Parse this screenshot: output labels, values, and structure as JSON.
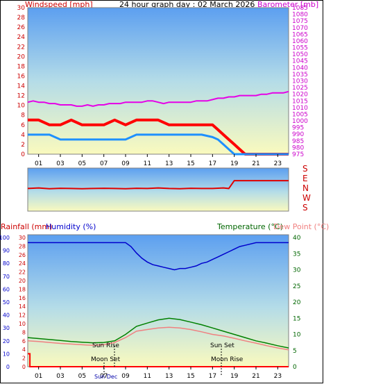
{
  "header": {
    "windspeed_label": "Windspeed [mph]",
    "title": "24 hour graph day : 02 March 2026",
    "barometer_label": "Barometer [mb]"
  },
  "lower_header": {
    "rainfall_label": "Rainfall (mm)",
    "humidity_label": "Humidity (%)",
    "temperature_label": "Temperature (°C)",
    "dewpoint_label": "Dew Point (°C)"
  },
  "annotations": {
    "sun_rise": "Sun Rise",
    "sun_set": "Sun Set",
    "moon_set": "Moon Set",
    "moon_rise": "Moon Rise",
    "sun_dec": "Sun Dec"
  },
  "hour_ticks": [
    "01",
    "03",
    "05",
    "07",
    "09",
    "11",
    "13",
    "15",
    "17",
    "19",
    "21",
    "23"
  ],
  "colors": {
    "wind_max": "#ff0000",
    "wind_avg": "#1e90ff",
    "barometer": "#e600e6",
    "direction": "#e00000",
    "humidity": "#0000cc",
    "temperature": "#008000",
    "dewpoint": "#f08080",
    "rain": "#ff0000",
    "left_axis": "#cc0000",
    "right_axis_baro": "#cc00cc",
    "right_axis_temp": "#006600"
  },
  "chart_data": [
    {
      "type": "line",
      "name": "wind-barometer",
      "x_unit": "hour",
      "xlim": [
        0,
        24
      ],
      "y_left": {
        "label": "Windspeed [mph]",
        "range": [
          0,
          30
        ],
        "ticks": [
          0,
          2,
          4,
          6,
          8,
          10,
          12,
          14,
          16,
          18,
          20,
          22,
          24,
          26,
          28,
          30
        ]
      },
      "y_right": {
        "label": "Barometer [mb]",
        "range": [
          975,
          1085
        ],
        "ticks": [
          975,
          980,
          985,
          990,
          995,
          1000,
          1005,
          1010,
          1015,
          1020,
          1025,
          1030,
          1035,
          1040,
          1045,
          1050,
          1055,
          1060,
          1065,
          1070,
          1075,
          1080,
          1085
        ]
      },
      "series": [
        {
          "name": "Barometer",
          "axis": "right",
          "x": [
            0,
            0.5,
            1,
            1.5,
            2,
            2.5,
            3,
            3.5,
            4,
            4.5,
            5,
            5.5,
            6,
            6.5,
            7,
            7.5,
            8,
            8.5,
            9,
            9.5,
            10,
            10.5,
            11,
            11.5,
            12,
            12.5,
            13,
            13.5,
            14,
            14.5,
            15,
            15.5,
            16,
            16.5,
            17,
            17.5,
            18,
            18.5,
            19,
            19.5,
            20,
            20.5,
            21,
            21.5,
            22,
            22.5,
            23,
            23.5,
            24
          ],
          "y": [
            1014,
            1015,
            1014,
            1014,
            1013,
            1013,
            1012,
            1012,
            1012,
            1011,
            1011,
            1012,
            1011,
            1012,
            1012,
            1013,
            1013,
            1013,
            1014,
            1014,
            1014,
            1014,
            1015,
            1015,
            1014,
            1013,
            1014,
            1014,
            1014,
            1014,
            1014,
            1015,
            1015,
            1015,
            1016,
            1017,
            1017,
            1018,
            1018,
            1019,
            1019,
            1019,
            1019,
            1020,
            1020,
            1021,
            1021,
            1021,
            1022
          ]
        },
        {
          "name": "Wind Gust",
          "axis": "left",
          "x": [
            0,
            1,
            2,
            3,
            4,
            5,
            6,
            7,
            8,
            9,
            10,
            11,
            12,
            13,
            14,
            15,
            16,
            17,
            17.5,
            18,
            18.5,
            19,
            19.5,
            20,
            21,
            22,
            23,
            24
          ],
          "y": [
            7,
            7,
            6,
            6,
            7,
            6,
            6,
            6,
            7,
            6,
            7,
            7,
            7,
            6,
            6,
            6,
            6,
            6,
            5,
            4,
            3,
            2,
            1,
            0,
            0,
            0,
            0,
            0
          ]
        },
        {
          "name": "Wind Average",
          "axis": "left",
          "x": [
            0,
            1,
            2,
            3,
            4,
            5,
            6,
            7,
            8,
            9,
            10,
            11,
            12,
            13,
            14,
            15,
            16,
            17,
            17.5,
            18,
            18.5,
            19,
            19.5,
            20,
            21,
            22,
            23,
            24
          ],
          "y": [
            4,
            4,
            4,
            3,
            3,
            3,
            3,
            3,
            3,
            3,
            4,
            4,
            4,
            4,
            4,
            4,
            4,
            3.5,
            3,
            2,
            1,
            0,
            0,
            0,
            0,
            0,
            0,
            0
          ]
        }
      ]
    },
    {
      "type": "line",
      "name": "wind-direction",
      "x_unit": "hour",
      "xlim": [
        0,
        24
      ],
      "y_axis_labels": [
        "S",
        "E",
        "N",
        "W",
        "S"
      ],
      "series": [
        {
          "name": "Wind Direction",
          "x": [
            0,
            1,
            2,
            3,
            4,
            5,
            6,
            7,
            8,
            9,
            10,
            11,
            12,
            13,
            14,
            15,
            16,
            17,
            18,
            18.5,
            19,
            20,
            21,
            22,
            23,
            24
          ],
          "y": [
            190,
            195,
            188,
            192,
            190,
            188,
            190,
            192,
            190,
            188,
            192,
            190,
            195,
            190,
            188,
            192,
            190,
            190,
            195,
            190,
            260,
            260,
            260,
            260,
            260,
            260
          ]
        }
      ]
    },
    {
      "type": "line",
      "name": "temp-humidity-rain",
      "x_unit": "hour",
      "xlim": [
        0,
        24
      ],
      "y_left_humidity": {
        "label": "Humidity (%)",
        "range": [
          0,
          100
        ],
        "ticks": [
          0,
          10,
          20,
          30,
          40,
          50,
          60,
          70,
          80,
          90,
          100
        ]
      },
      "y_left_rain": {
        "label": "Rainfall (mm)",
        "range": [
          0,
          30
        ],
        "ticks": [
          0,
          2,
          4,
          6,
          8,
          10,
          12,
          14,
          16,
          18,
          20,
          22,
          24,
          26,
          28,
          30
        ]
      },
      "y_right": {
        "label": "Temperature (°C)",
        "range": [
          0,
          40
        ],
        "ticks": [
          0,
          5,
          10,
          15,
          20,
          25,
          30,
          35,
          40
        ]
      },
      "series": [
        {
          "name": "Humidity",
          "axis": "left_humidity",
          "x": [
            0,
            1,
            2,
            3,
            4,
            5,
            6,
            7,
            8,
            9,
            9.5,
            10,
            10.5,
            11,
            11.5,
            12,
            12.5,
            13,
            13.5,
            14,
            14.5,
            15,
            15.5,
            16,
            16.5,
            17,
            17.5,
            18,
            18.5,
            19,
            19.5,
            20,
            21,
            22,
            23,
            24
          ],
          "y": [
            96,
            96,
            96,
            96,
            96,
            96,
            96,
            96,
            96,
            96,
            93,
            88,
            84,
            81,
            79,
            78,
            77,
            76,
            75,
            76,
            76,
            77,
            78,
            80,
            81,
            83,
            85,
            87,
            89,
            91,
            93,
            94,
            96,
            96,
            96,
            96
          ]
        },
        {
          "name": "Temperature",
          "axis": "right",
          "x": [
            0,
            1,
            2,
            3,
            4,
            5,
            6,
            7,
            8,
            9,
            10,
            11,
            12,
            13,
            14,
            15,
            16,
            17,
            18,
            19,
            20,
            21,
            22,
            23,
            24
          ],
          "y": [
            9,
            8.7,
            8.4,
            8.1,
            7.8,
            7.6,
            7.4,
            7.5,
            8,
            10,
            12.5,
            13.5,
            14.5,
            15,
            14.6,
            13.8,
            13,
            12,
            11,
            10,
            9,
            8,
            7.3,
            6.5,
            5.8
          ]
        },
        {
          "name": "Dew Point",
          "axis": "right",
          "x": [
            0,
            1,
            2,
            3,
            4,
            5,
            6,
            7,
            8,
            9,
            10,
            11,
            12,
            13,
            14,
            15,
            16,
            17,
            18,
            19,
            20,
            21,
            22,
            23,
            24
          ],
          "y": [
            8,
            7.8,
            7.5,
            7.2,
            7,
            6.8,
            6.6,
            6.8,
            7.5,
            9,
            11,
            11.5,
            12,
            12.2,
            12,
            11.5,
            10.8,
            10,
            9.5,
            8.8,
            8,
            7.3,
            6.5,
            5.8,
            5.2
          ]
        },
        {
          "name": "Rainfall",
          "axis": "left_rain",
          "x": [
            0,
            0.2,
            0.2,
            24
          ],
          "y": [
            3,
            3,
            0,
            0
          ]
        }
      ]
    }
  ]
}
